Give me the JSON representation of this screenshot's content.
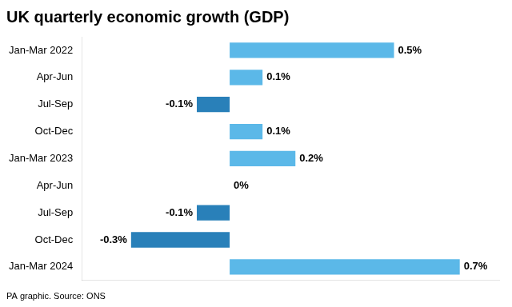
{
  "chart_data": {
    "type": "bar",
    "orientation": "horizontal",
    "title": "UK quarterly economic growth (GDP)",
    "annotations": [
      "PA graphic. Source: ONS"
    ],
    "categories": [
      "Jan-Mar 2022",
      "Apr-Jun",
      "Jul-Sep",
      "Oct-Dec",
      "Jan-Mar 2023",
      "Apr-Jun",
      "Jul-Sep",
      "Oct-Dec",
      "Jan-Mar 2024"
    ],
    "values": [
      0.5,
      0.1,
      -0.1,
      0.1,
      0.2,
      0.0,
      -0.1,
      -0.3,
      0.7
    ],
    "value_labels": [
      "0.5%",
      "0.1%",
      "-0.1%",
      "0.1%",
      "0.2%",
      "0%",
      "-0.1%",
      "-0.3%",
      "0.7%"
    ],
    "colors": [
      "#5bb8e8",
      "#5bb8e8",
      "#2980b9",
      "#5bb8e8",
      "#5bb8e8",
      "#5bb8e8",
      "#2980b9",
      "#2980b9",
      "#5bb8e8"
    ],
    "xlim": [
      -0.45,
      0.82
    ],
    "data_labels": true,
    "tick_labels": "y",
    "grid": false
  }
}
